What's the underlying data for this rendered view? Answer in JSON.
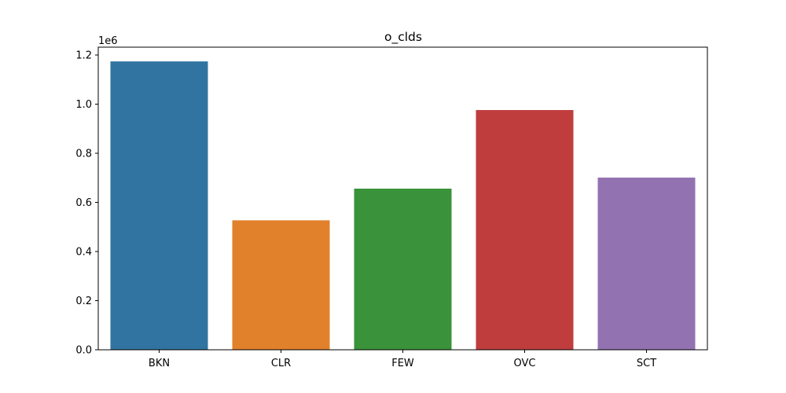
{
  "chart_data": {
    "type": "bar",
    "title": "o_clds",
    "xlabel": "",
    "ylabel": "",
    "categories": [
      "BKN",
      "CLR",
      "FEW",
      "OVC",
      "SCT"
    ],
    "values": [
      1174000,
      527000,
      656000,
      976000,
      701000
    ],
    "colors": [
      "#3274a1",
      "#e1812c",
      "#3a923a",
      "#c03d3e",
      "#9372b2"
    ],
    "ylim": [
      0,
      1232000
    ],
    "y_ticks": [
      0,
      200000,
      400000,
      600000,
      800000,
      1000000,
      1200000
    ],
    "y_tick_labels": [
      "0.0",
      "0.2",
      "0.4",
      "0.6",
      "0.8",
      "1.0",
      "1.2"
    ],
    "y_offset_label": "1e6",
    "grid": false,
    "legend": "none"
  }
}
